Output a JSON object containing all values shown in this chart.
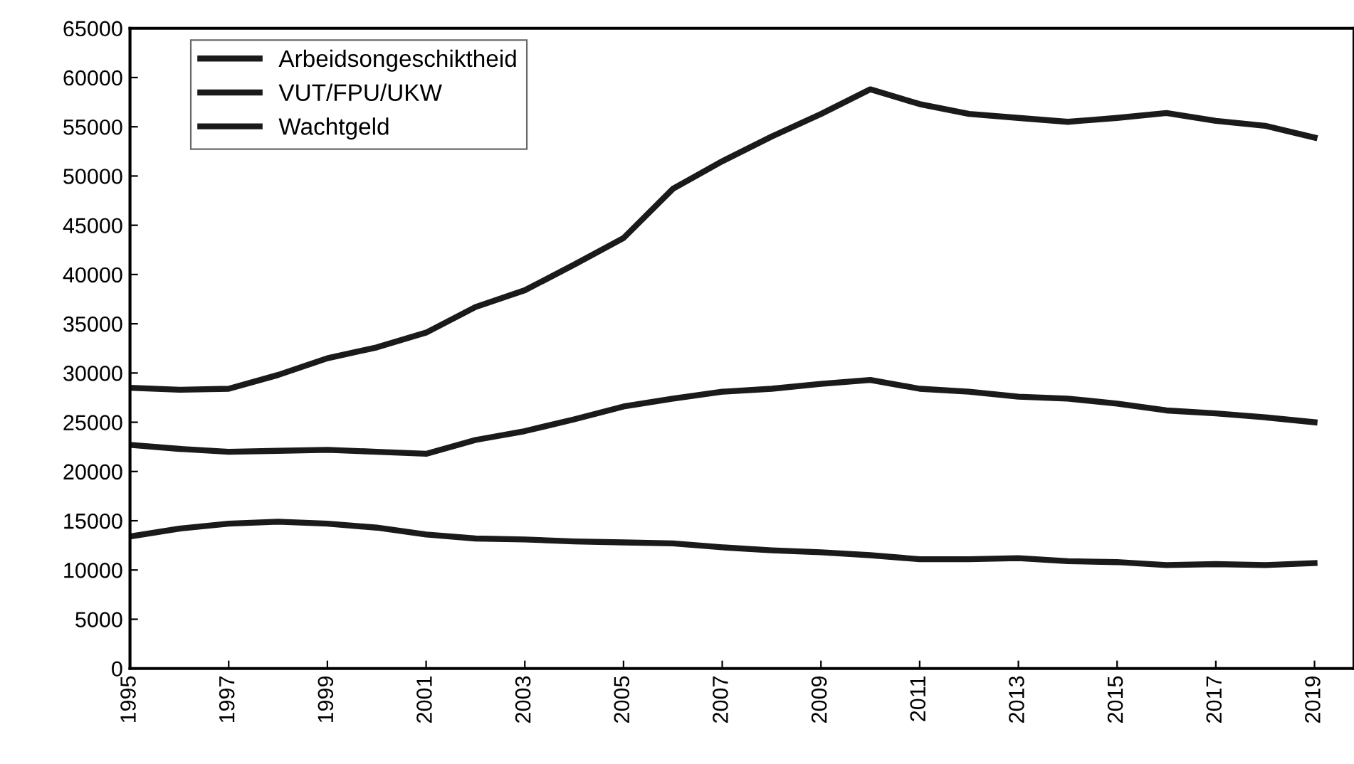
{
  "chart_data": {
    "type": "line",
    "x": [
      1995,
      1996,
      1997,
      1998,
      1999,
      2000,
      2001,
      2002,
      2003,
      2004,
      2005,
      2006,
      2007,
      2008,
      2009,
      2010,
      2011,
      2012,
      2013,
      2014,
      2015,
      2016,
      2017,
      2018,
      2019
    ],
    "series": [
      {
        "name": "Arbeidsongeschiktheid",
        "color": "#1a1a1a",
        "values": [
          28500,
          28300,
          28400,
          29800,
          31500,
          32600,
          34100,
          36700,
          38400,
          41000,
          43700,
          48700,
          51500,
          54000,
          56300,
          58800,
          57300,
          56300,
          55900,
          55500,
          55900,
          56400,
          55600,
          55100,
          53900
        ]
      },
      {
        "name": "VUT/FPU/UKW",
        "color": "#1a1a1a",
        "values": [
          22700,
          22300,
          22000,
          22100,
          22200,
          22000,
          21800,
          23200,
          24100,
          25300,
          26600,
          27400,
          28100,
          28400,
          28900,
          29300,
          28400,
          28100,
          27600,
          27400,
          26900,
          26200,
          25900,
          25500,
          25000
        ]
      },
      {
        "name": "Wachtgeld",
        "color": "#1a1a1a",
        "values": [
          13400,
          14200,
          14700,
          14900,
          14700,
          14300,
          13600,
          13200,
          13100,
          12900,
          12800,
          12700,
          12300,
          12000,
          11800,
          11500,
          11100,
          11100,
          11200,
          10900,
          10800,
          10500,
          10600,
          10500,
          10700
        ]
      }
    ],
    "xlim": [
      1995,
      2019.8
    ],
    "xticks": [
      1995,
      1997,
      1999,
      2001,
      2003,
      2005,
      2007,
      2009,
      2011,
      2013,
      2015,
      2017,
      2019
    ],
    "ylim": [
      0,
      65000
    ],
    "yticks": [
      0,
      5000,
      10000,
      15000,
      20000,
      25000,
      30000,
      35000,
      40000,
      45000,
      50000,
      55000,
      60000,
      65000
    ],
    "grid": false,
    "legend": "top left",
    "marker": "none",
    "line_style": "solid"
  }
}
